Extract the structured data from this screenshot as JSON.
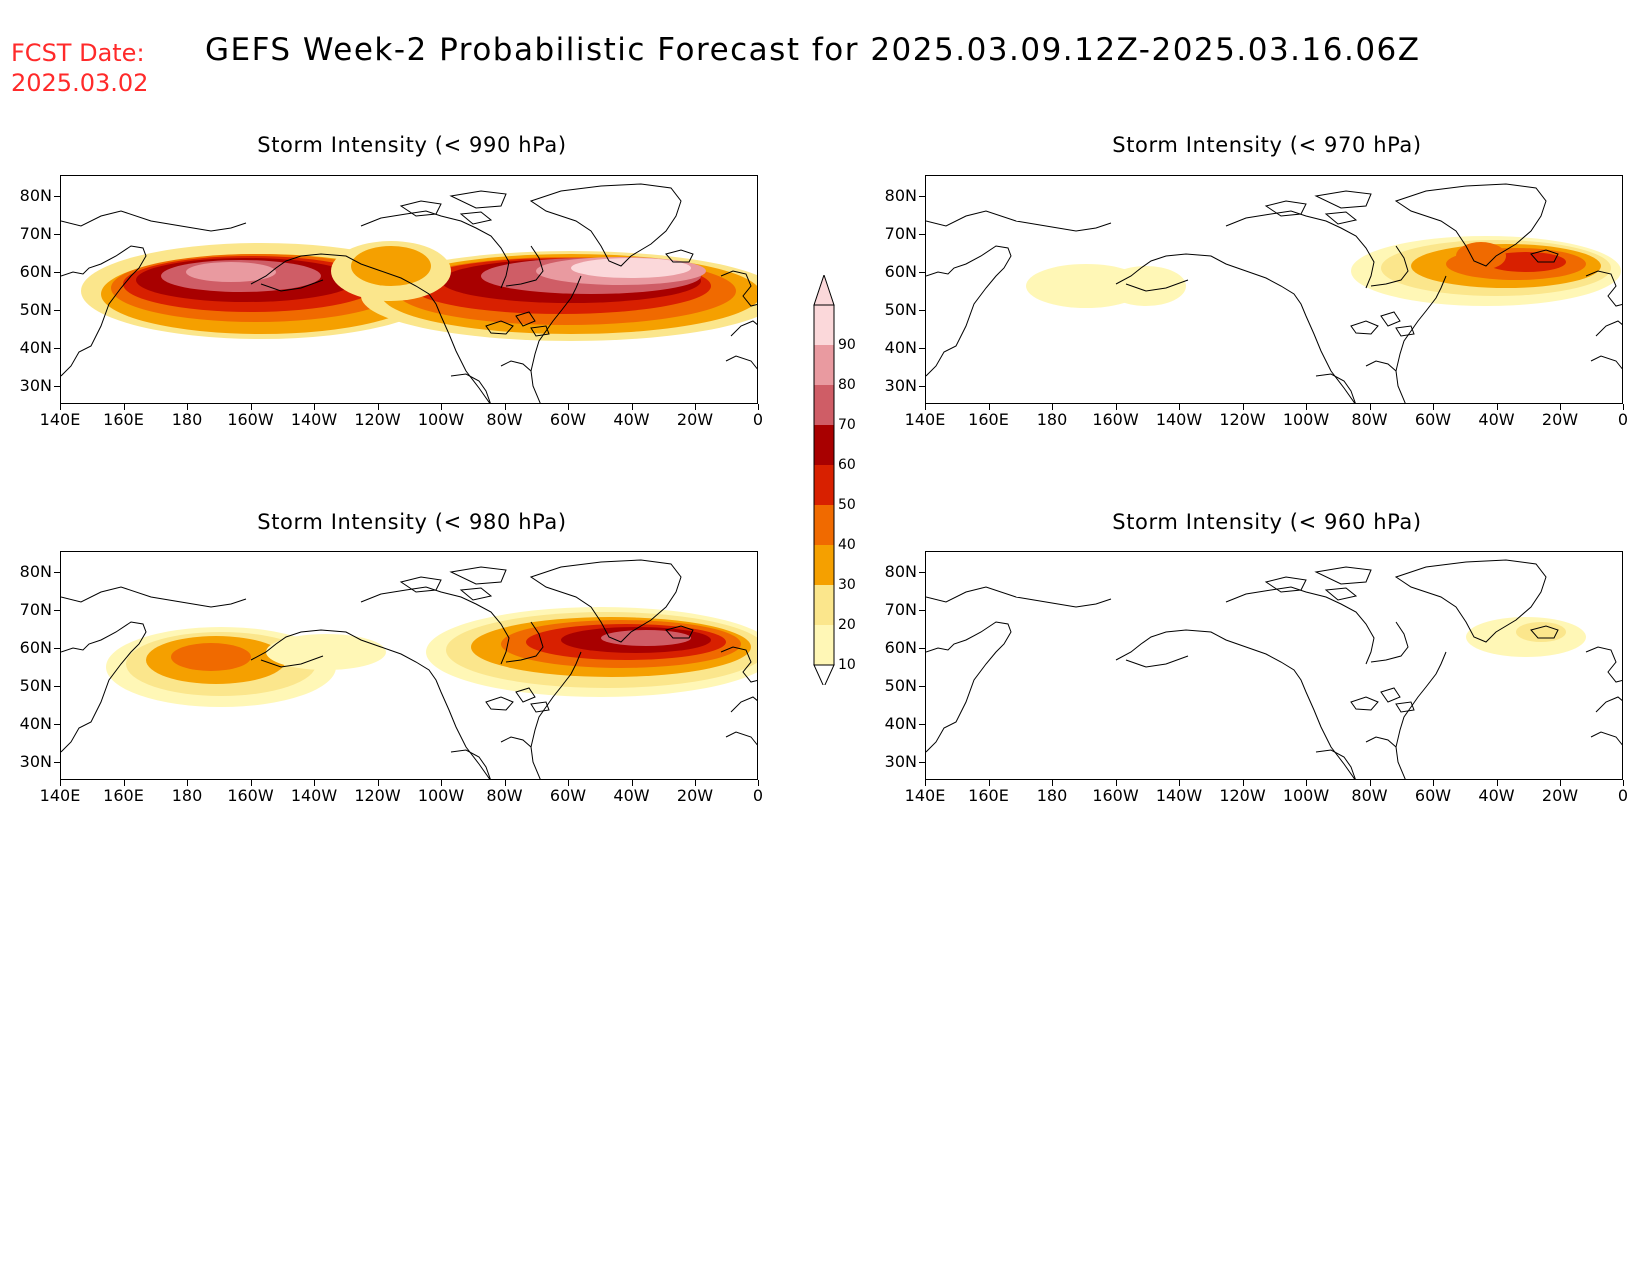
{
  "header": {
    "fcst_label": "FCST Date:",
    "fcst_date": "2025.03.02",
    "title": "GEFS Week-2 Probabilistic Forecast for 2025.03.09.12Z-2025.03.16.06Z"
  },
  "colors": {
    "fcst_text": "#ff2a2a",
    "scale": [
      "#fff7b6",
      "#fbe68c",
      "#f5a000",
      "#f06a00",
      "#d82000",
      "#a80000",
      "#cf5d66",
      "#e99aa0",
      "#fbd8da"
    ]
  },
  "legend": {
    "levels": [
      "10",
      "20",
      "30",
      "40",
      "50",
      "60",
      "70",
      "80",
      "90"
    ]
  },
  "axes": {
    "lat_labels": [
      "80N",
      "70N",
      "60N",
      "50N",
      "40N",
      "30N"
    ],
    "lon_labels": [
      "140E",
      "160E",
      "180",
      "160W",
      "140W",
      "120W",
      "100W",
      "80W",
      "60W",
      "40W",
      "20W",
      "0"
    ]
  },
  "panels": [
    {
      "title": "Storm Intensity (< 990 hPa)"
    },
    {
      "title": "Storm Intensity (< 970 hPa)"
    },
    {
      "title": "Storm Intensity (< 980 hPa)"
    },
    {
      "title": "Storm Intensity (< 960 hPa)"
    }
  ]
}
